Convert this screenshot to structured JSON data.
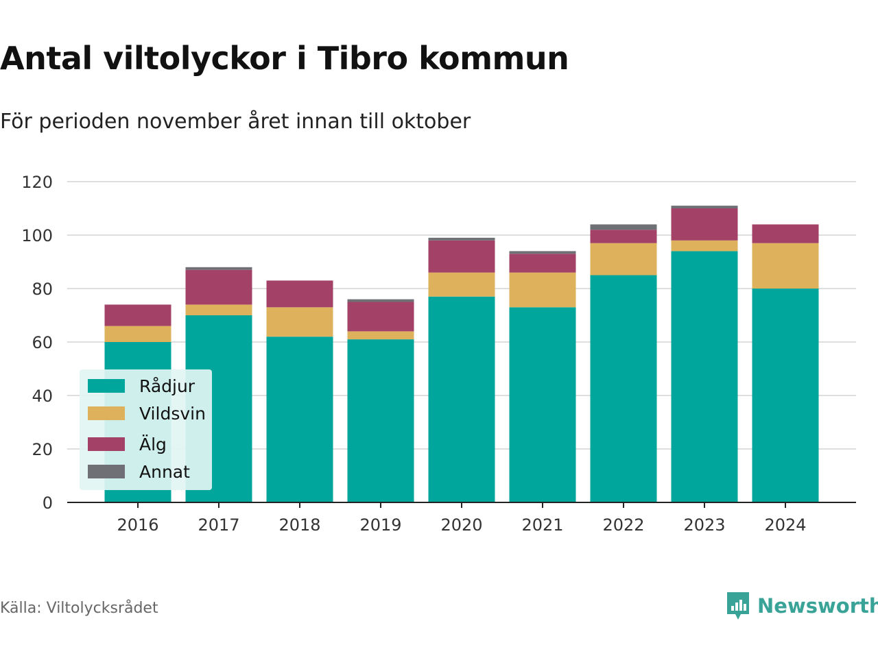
{
  "title": "Antal viltolyckor i Tibro kommun",
  "subtitle": "För perioden november året innan till oktober",
  "source": "Källa: Viltolycksrådet",
  "brand": "Newsworthy",
  "colors": {
    "radjur": "#00a59b",
    "vildsvin": "#deb15c",
    "alg": "#a34266",
    "annat": "#6f7076",
    "brand": "#3aa398"
  },
  "chart_data": {
    "type": "bar",
    "stacked": true,
    "categories": [
      "2016",
      "2017",
      "2018",
      "2019",
      "2020",
      "2021",
      "2022",
      "2023",
      "2024"
    ],
    "series": [
      {
        "name": "Rådjur",
        "values": [
          60,
          70,
          62,
          61,
          77,
          73,
          85,
          94,
          80
        ]
      },
      {
        "name": "Vildsvin",
        "values": [
          6,
          4,
          11,
          3,
          9,
          13,
          12,
          4,
          17
        ]
      },
      {
        "name": "Älg",
        "values": [
          8,
          13,
          10,
          11,
          12,
          7,
          5,
          12,
          7
        ]
      },
      {
        "name": "Annat",
        "values": [
          0,
          1,
          0,
          1,
          1,
          1,
          2,
          1,
          0
        ]
      }
    ],
    "title": "Antal viltolyckor i Tibro kommun",
    "subtitle": "För perioden november året innan till oktober",
    "xlabel": "",
    "ylabel": "",
    "ylim": [
      0,
      120
    ],
    "yticks": [
      0,
      20,
      40,
      60,
      80,
      100,
      120
    ],
    "grid": true,
    "legend_position": "bottom-left"
  }
}
